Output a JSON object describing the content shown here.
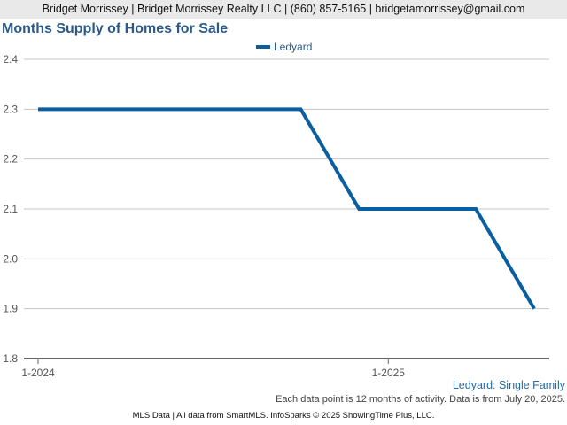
{
  "header": {
    "text": "Bridget Morrissey | Bridget Morrissey Realty LLC | (860) 857-5165 | bridgetamorrissey@gmail.com"
  },
  "chart_data": {
    "type": "line",
    "title": "Months Supply of Homes for Sale",
    "xlabel": "",
    "ylabel": "",
    "ylim": [
      1.8,
      2.4
    ],
    "y_ticks": [
      "1.8",
      "1.9",
      "2.0",
      "2.1",
      "2.2",
      "2.3",
      "2.4"
    ],
    "x_ticks": [
      "1-2024",
      "1-2025"
    ],
    "x": [
      "1-2024",
      "2-2024",
      "3-2024",
      "4-2024",
      "5-2024",
      "6-2024",
      "7-2024",
      "8-2024",
      "9-2024",
      "10-2024",
      "11-2024",
      "12-2024",
      "1-2025",
      "2-2025",
      "3-2025",
      "4-2025",
      "5-2025",
      "6-2025"
    ],
    "series": [
      {
        "name": "Ledyard",
        "color": "#0a5fa0",
        "values": [
          2.3,
          2.3,
          2.3,
          2.3,
          2.3,
          2.3,
          2.3,
          2.3,
          2.3,
          2.3,
          2.2,
          2.1,
          2.1,
          2.1,
          2.1,
          2.1,
          2.0,
          1.9
        ]
      }
    ],
    "grid": true,
    "legend_position": "top-center"
  },
  "footnotes": {
    "series_label": "Ledyard: Single Family",
    "data_note": "Each data point is 12 months of activity. Data is from July 20, 2025."
  },
  "footer": {
    "text": "MLS Data | All data from SmartMLS. InfoSparks © 2025 ShowingTime Plus, LLC."
  }
}
